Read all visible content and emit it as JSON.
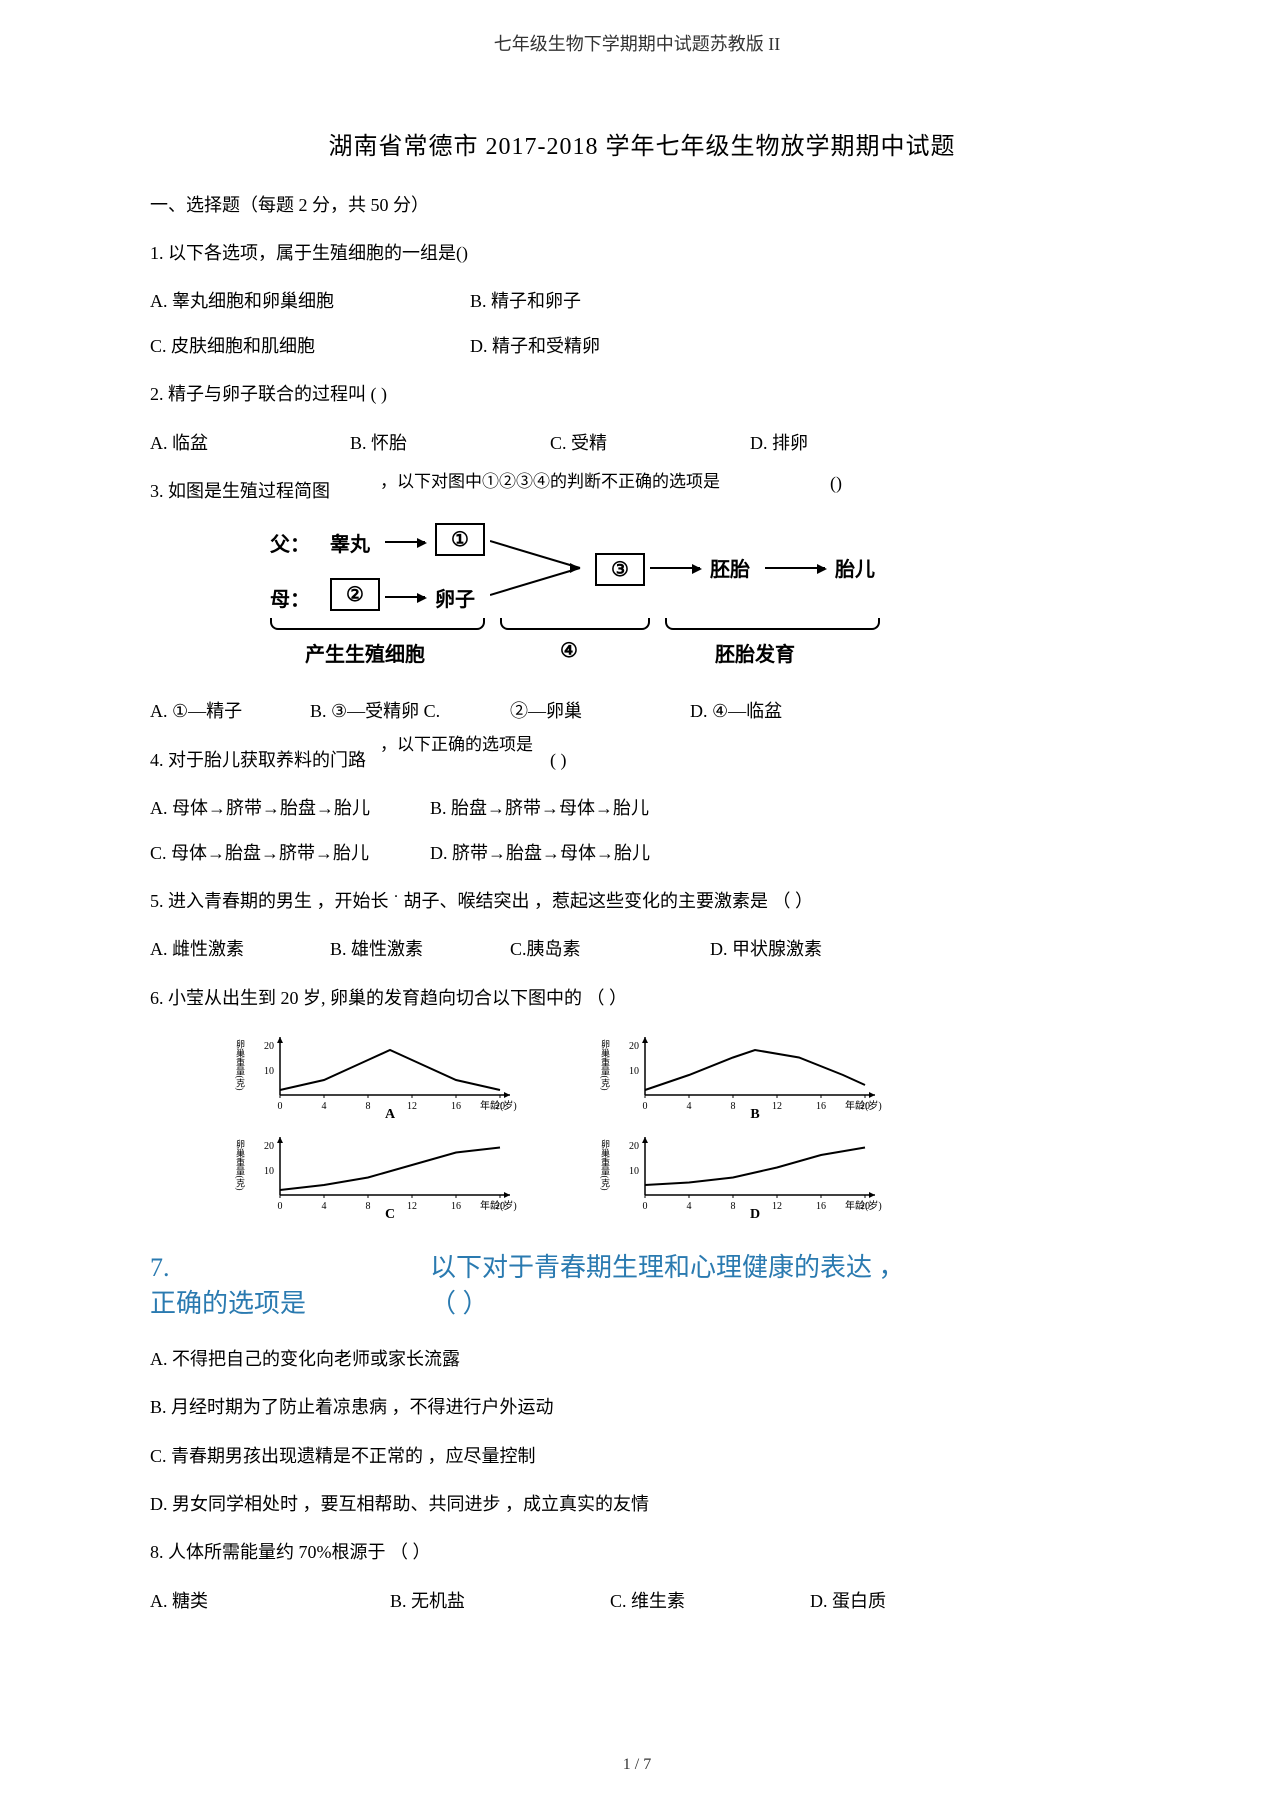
{
  "header": {
    "running_title": "七年级生物下学期期中试题苏教版 II"
  },
  "title": "湖南省常德市   2017-2018 学年七年级生物放学期期中试题",
  "section1": {
    "heading": "一、选择题（每题  2 分，共 50 分）"
  },
  "q1": {
    "stem": "1.  以下各选项，属于生殖细胞的一组是()",
    "A": "A. 睾丸细胞和卵巢细胞",
    "B": "B. 精子和卵子",
    "C": "C. 皮肤细胞和肌细胞",
    "D": "D. 精子和受精卵"
  },
  "q2": {
    "stem": "2.  精子与卵子联合的过程叫             (     )",
    "A": "A. 临盆",
    "B": "B. 怀胎",
    "C": "C. 受精",
    "D": "D. 排卵"
  },
  "q3": {
    "stem_left": "3.  如图是生殖过程简图",
    "stem_mid": "，以下对图中①②③④的判断不正确的选项是",
    "paren": "()",
    "diagram": {
      "father": "父：",
      "gaowan": "睾丸",
      "box1": "①",
      "mother": "母：",
      "box2": "②",
      "luanzi": "卵子",
      "box3": "③",
      "peitai": "胚胎",
      "taier": "胎儿",
      "label_left": "产生生殖细胞",
      "label_mid": "④",
      "label_right": "胚胎发育"
    },
    "A": "A. ①—精子",
    "B": "B. ③—受精卵 C.",
    "C": "②—卵巢",
    "D": "D. ④—临盆"
  },
  "q4": {
    "stem_left": "4. 对于胎儿获取养料的门路",
    "stem_mid": "，以下正确的选项是",
    "paren": "(    )",
    "A": "A. 母体→脐带→胎盘→胎儿",
    "B": "B. 胎盘→脐带→母体→胎儿",
    "C": "C. 母体→胎盘→脐带→胎儿",
    "D": "D. 脐带→胎盘→母体→胎儿"
  },
  "q5": {
    "stem": "5. 进入青春期的男生 ，开始长 ˙ 胡子、喉结突出 ，惹起这些变化的主要激素是  （         ）",
    "A": "A. 雌性激素",
    "B": "B. 雄性激素",
    "C": "C.胰岛素",
    "D": "D. 甲状腺激素"
  },
  "q6": {
    "stem": "6. 小莹从出生到     20 岁, 卵巢的发育趋向切合以下图中的       （           ）",
    "charts": {
      "ylabel": "卵巢重量(克)",
      "xlabel": "年龄(岁)",
      "yticks": [
        0,
        10,
        20
      ],
      "xticks": [
        0,
        4,
        8,
        12,
        16,
        20
      ],
      "A": {
        "label": "A",
        "curve": [
          [
            0,
            2
          ],
          [
            4,
            6
          ],
          [
            8,
            14
          ],
          [
            10,
            18
          ],
          [
            12,
            14
          ],
          [
            16,
            6
          ],
          [
            20,
            2
          ]
        ]
      },
      "B": {
        "label": "B",
        "curve": [
          [
            0,
            2
          ],
          [
            4,
            8
          ],
          [
            8,
            15
          ],
          [
            10,
            18
          ],
          [
            14,
            15
          ],
          [
            18,
            8
          ],
          [
            20,
            4
          ]
        ]
      },
      "C": {
        "label": "C",
        "curve": [
          [
            0,
            2
          ],
          [
            4,
            4
          ],
          [
            8,
            7
          ],
          [
            12,
            12
          ],
          [
            16,
            17
          ],
          [
            20,
            19
          ]
        ]
      },
      "D": {
        "label": "D",
        "curve": [
          [
            0,
            4
          ],
          [
            4,
            5
          ],
          [
            8,
            7
          ],
          [
            12,
            11
          ],
          [
            16,
            16
          ],
          [
            20,
            19
          ]
        ]
      }
    }
  },
  "q7": {
    "num": "7.",
    "left": "正确的选项是",
    "right": "以下对于青春期生理和心理健康的表达  ，",
    "paren": "（           ）",
    "A": "A. 不得把自己的变化向老师或家长流露",
    "B": "B. 月经时期为了防止着凉患病 ，不得进行户外运动",
    "C": "C. 青春期男孩出现遗精是不正常的    ，应尽量控制",
    "D": "D. 男女同学相处时 ，要互相帮助、共同进步 ，成立真实的友情"
  },
  "q8": {
    "stem": "8.  人体所需能量约    70%根源于   （         ）",
    "A": "A. 糖类",
    "B": "B. 无机盐",
    "C": "C. 维生素",
    "D": "D. 蛋白质"
  },
  "footer": {
    "page": "1 / 7"
  },
  "colors": {
    "text": "#000000",
    "highlight": "#2a7ab0",
    "background": "#ffffff"
  }
}
